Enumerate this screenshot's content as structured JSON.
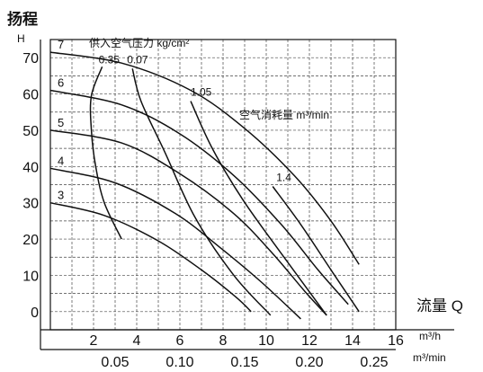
{
  "chart_data": {
    "type": "line",
    "y_title": "扬程",
    "y_unit": "H",
    "x_title": "流量 Q",
    "x_unit": "m³/h",
    "x2_unit": "m³/min",
    "pressure_legend": "供入空气压力 kg/cm²",
    "consumption_legend": "空气消耗量 m³/min",
    "xlim": [
      0,
      16
    ],
    "ylim": [
      -5,
      75
    ],
    "x_ticks": [
      "2",
      "4",
      "6",
      "8",
      "10",
      "12",
      "14",
      "16"
    ],
    "x_tick_values": [
      2,
      4,
      6,
      8,
      10,
      12,
      14,
      16
    ],
    "y_ticks": [
      "70",
      "60",
      "50",
      "40",
      "30",
      "20",
      "10",
      "0"
    ],
    "y_tick_values": [
      70,
      60,
      50,
      40,
      30,
      20,
      10,
      0
    ],
    "x2_ticks": [
      "0.05",
      "0.10",
      "0.15",
      "0.20",
      "0.25"
    ],
    "x2_tick_values": [
      3,
      6,
      9,
      12,
      15
    ],
    "pressure_curves": [
      {
        "name": "7",
        "points": [
          [
            0,
            71.5
          ],
          [
            3.3,
            68.5
          ],
          [
            6.5,
            61
          ],
          [
            9,
            50.5
          ],
          [
            11.3,
            37.5
          ],
          [
            13,
            25
          ],
          [
            14.3,
            13
          ]
        ]
      },
      {
        "name": "6",
        "points": [
          [
            0,
            61
          ],
          [
            3.3,
            57
          ],
          [
            6,
            49
          ],
          [
            8.5,
            37.5
          ],
          [
            10.7,
            24
          ],
          [
            12.4,
            11.5
          ],
          [
            13.8,
            2
          ]
        ]
      },
      {
        "name": "5",
        "points": [
          [
            0,
            50
          ],
          [
            3.3,
            46.5
          ],
          [
            6,
            38
          ],
          [
            8.5,
            27
          ],
          [
            10.3,
            16
          ],
          [
            11.8,
            5.5
          ],
          [
            12.8,
            -1
          ]
        ]
      },
      {
        "name": "4",
        "points": [
          [
            0,
            39.5
          ],
          [
            3,
            35.5
          ],
          [
            5.8,
            27
          ],
          [
            8,
            17
          ],
          [
            9.8,
            8
          ],
          [
            11.6,
            -2
          ]
        ]
      },
      {
        "name": "3",
        "points": [
          [
            0,
            30
          ],
          [
            2.5,
            26.5
          ],
          [
            5,
            19.5
          ],
          [
            7,
            11.5
          ],
          [
            8.6,
            4
          ],
          [
            9.3,
            0
          ]
        ]
      }
    ],
    "air_consumption_curves": [
      {
        "name": "0.35",
        "points": [
          [
            2.4,
            67.5
          ],
          [
            1.9,
            59.5
          ],
          [
            1.9,
            50
          ],
          [
            2.1,
            40
          ],
          [
            2.5,
            30
          ],
          [
            3.3,
            20
          ]
        ]
      },
      {
        "name": "0.07",
        "points": [
          [
            3.8,
            67
          ],
          [
            4.2,
            58
          ],
          [
            5.3,
            44
          ],
          [
            6.7,
            26
          ],
          [
            8.5,
            10
          ],
          [
            10.2,
            -1
          ]
        ]
      },
      {
        "name": "1.05",
        "points": [
          [
            6.5,
            58
          ],
          [
            7.5,
            45
          ],
          [
            8.9,
            31
          ],
          [
            10.7,
            16
          ],
          [
            12.8,
            -1
          ]
        ]
      },
      {
        "name": "1.4",
        "points": [
          [
            10.3,
            34.5
          ],
          [
            11.6,
            24
          ],
          [
            13,
            11.5
          ],
          [
            14.3,
            0
          ]
        ]
      }
    ],
    "grid": true,
    "legend": "none"
  }
}
